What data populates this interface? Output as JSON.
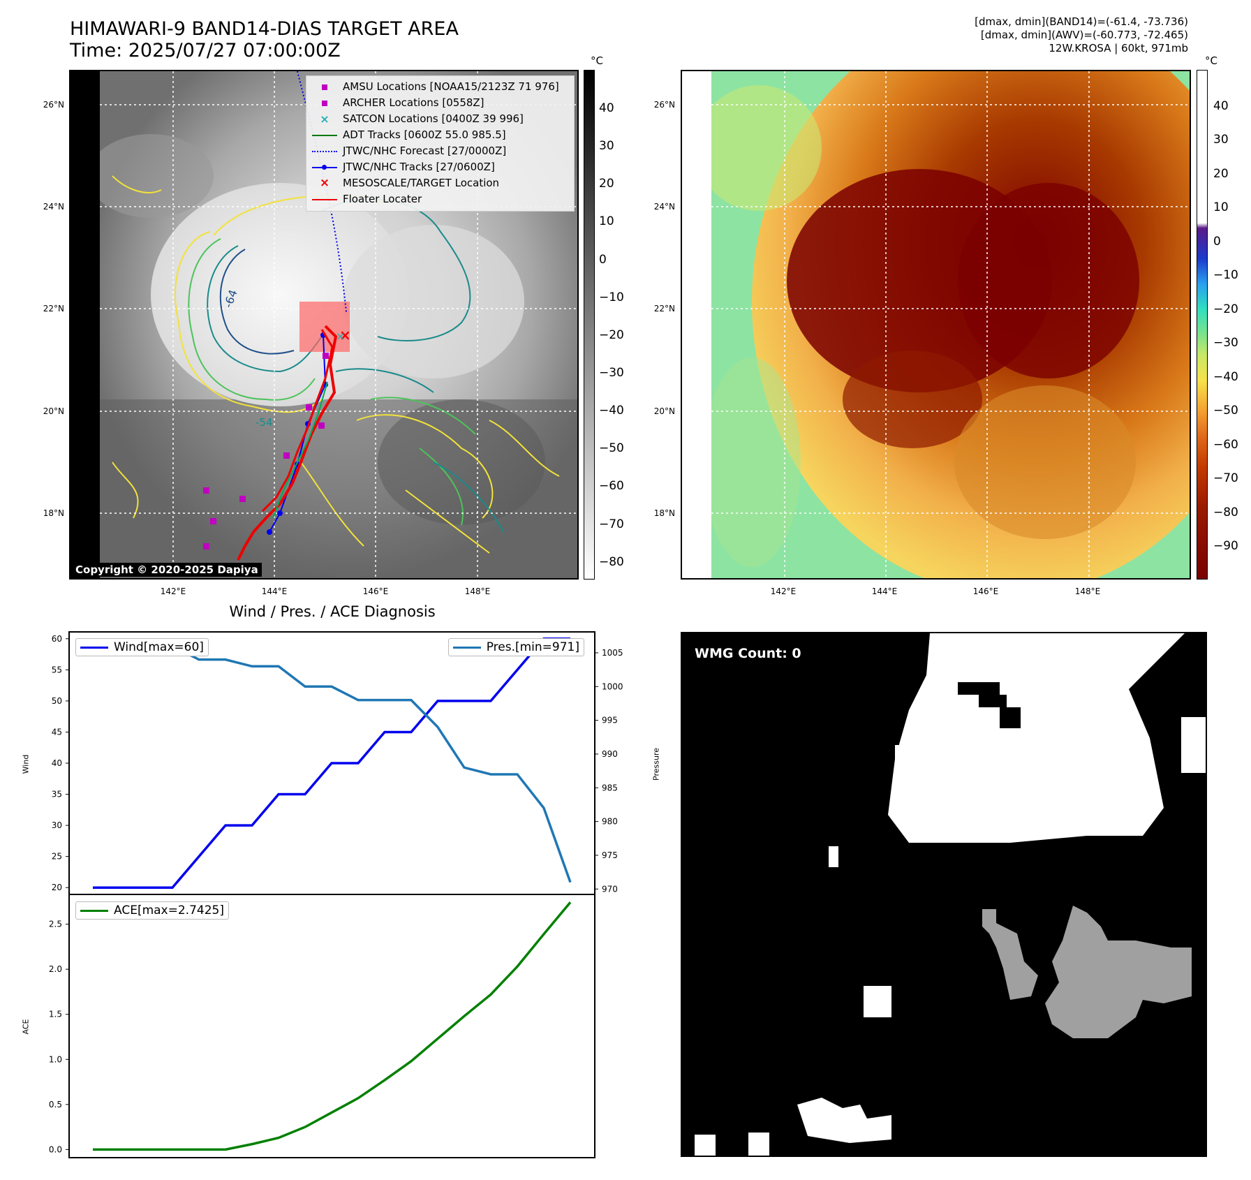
{
  "header": {
    "title_line1": "HIMAWARI-9 BAND14-DIAS TARGET AREA",
    "title_line2": "Time: 2025/07/27 07:00:00Z",
    "stats_line1": "[dmax, dmin](BAND14)=(-61.4, -73.736)",
    "stats_line2": "[dmax, dmin](AWV)=(-60.773, -72.465)",
    "stats_line3": "12W.KROSA | 60kt, 971mb"
  },
  "map_axes": {
    "lat_labels": [
      "26°N",
      "24°N",
      "22°N",
      "20°N",
      "18°N"
    ],
    "lon_labels": [
      "142°E",
      "144°E",
      "146°E",
      "148°E"
    ]
  },
  "colorbar_left": {
    "unit": "°C",
    "ticks": [
      "40",
      "30",
      "20",
      "10",
      "0",
      "−10",
      "−20",
      "−30",
      "−40",
      "−50",
      "−60",
      "−70",
      "−80"
    ]
  },
  "colorbar_right": {
    "unit": "°C",
    "ticks": [
      "40",
      "30",
      "20",
      "10",
      "0",
      "−10",
      "−20",
      "−30",
      "−40",
      "−50",
      "−60",
      "−70",
      "−80",
      "−90"
    ]
  },
  "legend": {
    "items": [
      {
        "label": "AMSU Locations [NOAA15/2123Z 71 976]",
        "marker": "square",
        "color": "#c000c0"
      },
      {
        "label": "ARCHER Locations [0558Z]",
        "marker": "square",
        "color": "#c000c0"
      },
      {
        "label": "SATCON Locations [0400Z 39 996]",
        "marker": "x",
        "color": "#20b0b0"
      },
      {
        "label": "ADT Tracks [0600Z 55.0 985.5]",
        "marker": "line",
        "color": "#007700"
      },
      {
        "label": "JTWC/NHC Forecast [27/0000Z]",
        "marker": "dotted",
        "color": "#0000ee"
      },
      {
        "label": "JTWC/NHC Tracks [27/0600Z]",
        "marker": "line-dot",
        "color": "#0000ee"
      },
      {
        "label": "MESOSCALE/TARGET Location",
        "marker": "x",
        "color": "#ee0000"
      },
      {
        "label": "Floater Locater",
        "marker": "line",
        "color": "#ee0000"
      }
    ]
  },
  "contour_label": "-64",
  "contour_label2": "-54",
  "copyright": "Copyright © 2020-2025 Dapiya",
  "diagnosis_title": "Wind / Pres. / ACE Diagnosis",
  "chart_data": [
    {
      "type": "line",
      "title": "Wind / Pres. / ACE Diagnosis",
      "x": [
        0,
        1,
        2,
        3,
        4,
        5,
        6,
        7,
        8,
        9,
        10,
        11,
        12,
        13,
        14,
        15,
        16,
        17,
        18
      ],
      "ylabel": "Wind",
      "ylabel_right": "Pressure",
      "ylim": [
        18.9,
        61.1
      ],
      "ylim_right": [
        969.2,
        1008.1
      ],
      "yticks": [
        20,
        25,
        30,
        35,
        40,
        45,
        50,
        55,
        60
      ],
      "yticks_right": [
        970,
        975,
        980,
        985,
        990,
        995,
        1000,
        1005
      ],
      "series": [
        {
          "name": "Wind[max=60]",
          "axis": "left",
          "color": "#0000ee",
          "values": [
            20,
            20,
            20,
            20,
            25,
            30,
            30,
            35,
            35,
            40,
            40,
            45,
            45,
            50,
            50,
            50,
            55,
            60,
            60
          ]
        },
        {
          "name": "Pres.[min=971]",
          "axis": "right",
          "color": "#1f77b4",
          "values": [
            1006,
            1006,
            1006,
            1006,
            1004,
            1004,
            1003,
            1003,
            1000,
            1000,
            998,
            998,
            998,
            994,
            988,
            987,
            987,
            982,
            971
          ]
        }
      ]
    },
    {
      "type": "line",
      "ylabel": "ACE",
      "ylim": [
        -0.09,
        2.83
      ],
      "yticks": [
        0.0,
        0.5,
        1.0,
        1.5,
        2.0,
        2.5
      ],
      "x": [
        0,
        1,
        2,
        3,
        4,
        5,
        6,
        7,
        8,
        9,
        10,
        11,
        12,
        13,
        14,
        15,
        16,
        17,
        18
      ],
      "series": [
        {
          "name": "ACE[max=2.7425]",
          "color": "#008000",
          "values": [
            0,
            0,
            0,
            0,
            0,
            0,
            0.06,
            0.13,
            0.25,
            0.41,
            0.57,
            0.77,
            0.98,
            1.23,
            1.48,
            1.72,
            2.03,
            2.39,
            2.7425
          ]
        }
      ]
    }
  ],
  "wmg": {
    "label": "WMG Count: 0"
  }
}
